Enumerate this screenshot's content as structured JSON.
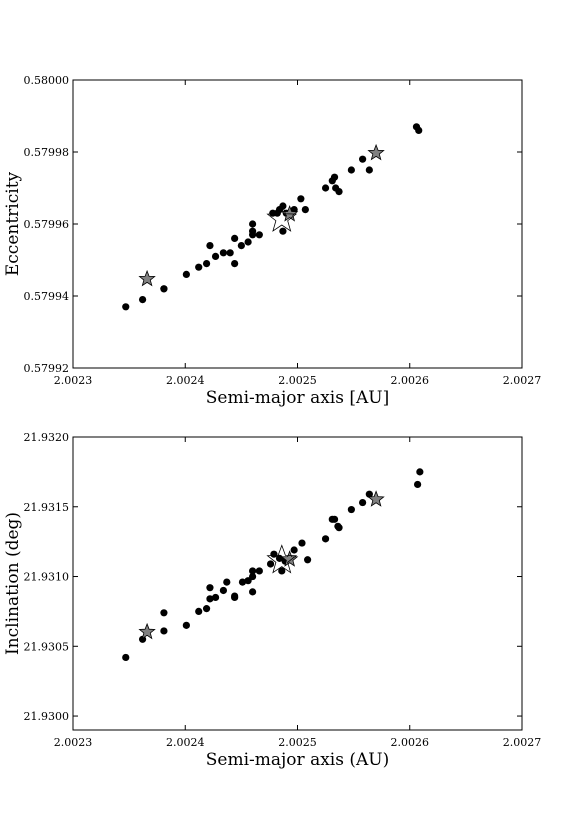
{
  "chart_data": [
    {
      "type": "scatter",
      "title": "",
      "xlabel": "Semi-major axis [AU]",
      "ylabel": "Eccentricity",
      "xlim": [
        2.0023,
        2.0027
      ],
      "ylim": [
        0.57992,
        0.58
      ],
      "xticks": [
        "2.0023",
        "2.0024",
        "2.0025",
        "2.0026",
        "2.0027"
      ],
      "yticks": [
        "0.57992",
        "0.57994",
        "0.57996",
        "0.57998",
        "0.58000"
      ],
      "grid": false,
      "series": [
        {
          "marker": "dot",
          "color": "#000000",
          "points": [
            [
              2.002347,
              0.579937
            ],
            [
              2.002362,
              0.579939
            ],
            [
              2.002381,
              0.579942
            ],
            [
              2.002381,
              0.579942
            ],
            [
              2.002401,
              0.579946
            ],
            [
              2.002412,
              0.579948
            ],
            [
              2.002419,
              0.579949
            ],
            [
              2.002422,
              0.579954
            ],
            [
              2.002427,
              0.579951
            ],
            [
              2.002434,
              0.579952
            ],
            [
              2.00244,
              0.579952
            ],
            [
              2.002444,
              0.579956
            ],
            [
              2.002444,
              0.579949
            ],
            [
              2.00245,
              0.579954
            ],
            [
              2.002456,
              0.579955
            ],
            [
              2.00246,
              0.579957
            ],
            [
              2.00246,
              0.579958
            ],
            [
              2.00246,
              0.57996
            ],
            [
              2.002466,
              0.579957
            ],
            [
              2.002478,
              0.579963
            ],
            [
              2.002482,
              0.579963
            ],
            [
              2.002484,
              0.579964
            ],
            [
              2.002487,
              0.579965
            ],
            [
              2.002487,
              0.579958
            ],
            [
              2.00249,
              0.579963
            ],
            [
              2.002497,
              0.579964
            ],
            [
              2.002503,
              0.579967
            ],
            [
              2.002507,
              0.579964
            ],
            [
              2.002525,
              0.57997
            ],
            [
              2.002531,
              0.579972
            ],
            [
              2.002533,
              0.579973
            ],
            [
              2.002534,
              0.57997
            ],
            [
              2.002537,
              0.579969
            ],
            [
              2.002548,
              0.579975
            ],
            [
              2.002558,
              0.579978
            ],
            [
              2.002564,
              0.579975
            ],
            [
              2.002606,
              0.579987
            ],
            [
              2.002608,
              0.579986
            ]
          ]
        },
        {
          "marker": "star",
          "color": "#808080",
          "points": [
            [
              2.002366,
              0.579945
            ],
            [
              2.002493,
              0.579963
            ],
            [
              2.00257,
              0.57998
            ]
          ]
        },
        {
          "marker": "star-open",
          "color": "#ffffff",
          "points": [
            [
              2.002486,
              0.579962
            ]
          ]
        }
      ]
    },
    {
      "type": "scatter",
      "title": "",
      "xlabel": "Semi-major axis (AU)",
      "ylabel": "Inclination (deg)",
      "xlim": [
        2.0023,
        2.0027
      ],
      "ylim": [
        21.9299,
        21.932
      ],
      "xticks": [
        "2.0023",
        "2.0024",
        "2.0025",
        "2.0026",
        "2.0027"
      ],
      "yticks": [
        "21.9300",
        "21.9305",
        "21.9310",
        "21.9315",
        "21.9320"
      ],
      "grid": false,
      "series": [
        {
          "marker": "dot",
          "color": "#000000",
          "points": [
            [
              2.002347,
              21.93042
            ],
            [
              2.002362,
              21.93055
            ],
            [
              2.002381,
              21.93074
            ],
            [
              2.002381,
              21.93061
            ],
            [
              2.002401,
              21.93065
            ],
            [
              2.002412,
              21.93075
            ],
            [
              2.002419,
              21.93077
            ],
            [
              2.002422,
              21.93084
            ],
            [
              2.002422,
              21.93092
            ],
            [
              2.002427,
              21.93085
            ],
            [
              2.002434,
              21.9309
            ],
            [
              2.002437,
              21.93096
            ],
            [
              2.002444,
              21.93085
            ],
            [
              2.002444,
              21.93086
            ],
            [
              2.002451,
              21.93096
            ],
            [
              2.002456,
              21.93097
            ],
            [
              2.00246,
              21.93089
            ],
            [
              2.00246,
              21.931
            ],
            [
              2.00246,
              21.93104
            ],
            [
              2.002466,
              21.93104
            ],
            [
              2.002476,
              21.93109
            ],
            [
              2.002479,
              21.93116
            ],
            [
              2.002484,
              21.93113
            ],
            [
              2.002486,
              21.93104
            ],
            [
              2.002489,
              21.93111
            ],
            [
              2.002497,
              21.93119
            ],
            [
              2.002504,
              21.93124
            ],
            [
              2.002509,
              21.93112
            ],
            [
              2.002525,
              21.93127
            ],
            [
              2.002531,
              21.93141
            ],
            [
              2.002533,
              21.93141
            ],
            [
              2.002536,
              21.93136
            ],
            [
              2.002537,
              21.93135
            ],
            [
              2.002548,
              21.93148
            ],
            [
              2.002558,
              21.93153
            ],
            [
              2.002564,
              21.93159
            ],
            [
              2.002607,
              21.93166
            ],
            [
              2.002609,
              21.93175
            ]
          ]
        },
        {
          "marker": "star",
          "color": "#808080",
          "points": [
            [
              2.002366,
              21.93061
            ],
            [
              2.002493,
              21.93113
            ],
            [
              2.00257,
              21.93156
            ]
          ]
        },
        {
          "marker": "star-open",
          "color": "#ffffff",
          "points": [
            [
              2.002486,
              21.93113
            ]
          ]
        }
      ]
    }
  ]
}
